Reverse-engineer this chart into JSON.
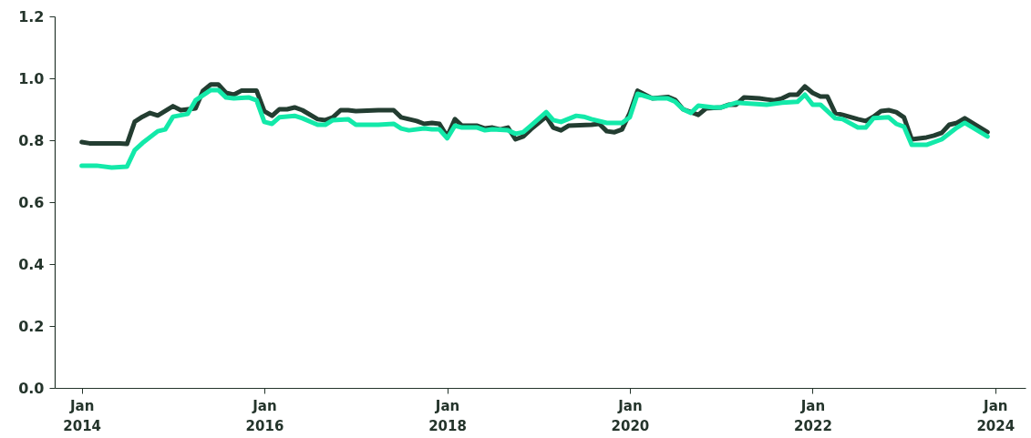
{
  "chart_data": {
    "type": "line",
    "xlim": [
      "2013-09-15",
      "2024-05-01"
    ],
    "ylim": [
      0,
      1.2
    ],
    "yticks": [
      {
        "value": 0,
        "label": "0.0"
      },
      {
        "value": 0.2,
        "label": "0.2"
      },
      {
        "value": 0.4,
        "label": "0.4"
      },
      {
        "value": 0.6,
        "label": "0.6"
      },
      {
        "value": 0.8,
        "label": "0.8"
      },
      {
        "value": 1,
        "label": "1.0"
      },
      {
        "value": 1.2,
        "label": "1.2"
      }
    ],
    "xticks": [
      {
        "value": "2014-01",
        "label": "Jan 2014"
      },
      {
        "value": "2016-01",
        "label": "Jan 2016"
      },
      {
        "value": "2018-01",
        "label": "Jan 2018"
      },
      {
        "value": "2020-01",
        "label": "Jan 2020"
      },
      {
        "value": "2022-01",
        "label": "Jan 2022"
      },
      {
        "value": "2024-01",
        "label": "Jan 2024"
      }
    ],
    "grid": false,
    "legend": false,
    "marker": "none",
    "line_style": "solid",
    "series": [
      {
        "color": "#233d31",
        "x": [
          "2014-01",
          "2014-02",
          "2014-06",
          "2014-07",
          "2014-08",
          "2014-09",
          "2014-10",
          "2014-11",
          "2015-01",
          "2015-02",
          "2015-04",
          "2015-05",
          "2015-06",
          "2015-07",
          "2015-08",
          "2015-09",
          "2015-10",
          "2015-12",
          "2016-01",
          "2016-02",
          "2016-03",
          "2016-04",
          "2016-05",
          "2016-06",
          "2016-08",
          "2016-09",
          "2016-10",
          "2016-11",
          "2016-12",
          "2017-01",
          "2017-04",
          "2017-06",
          "2017-07",
          "2017-08",
          "2017-09",
          "2017-10",
          "2017-11",
          "2017-12",
          "2018-01",
          "2018-02",
          "2018-03",
          "2018-05",
          "2018-06",
          "2018-07",
          "2018-08",
          "2018-09",
          "2018-10",
          "2018-11",
          "2018-12",
          "2019-02",
          "2019-03",
          "2019-04",
          "2019-05",
          "2019-08",
          "2019-09",
          "2019-10",
          "2019-11",
          "2019-12",
          "2020-01",
          "2020-02",
          "2020-04",
          "2020-06",
          "2020-07",
          "2020-08",
          "2020-09",
          "2020-10",
          "2020-11",
          "2021-01",
          "2021-02",
          "2021-03",
          "2021-04",
          "2021-06",
          "2021-07",
          "2021-08",
          "2021-09",
          "2021-10",
          "2021-11",
          "2021-12",
          "2022-01",
          "2022-02",
          "2022-03",
          "2022-04",
          "2022-05",
          "2022-07",
          "2022-08",
          "2022-09",
          "2022-10",
          "2022-11",
          "2022-12",
          "2023-01",
          "2023-02",
          "2023-04",
          "2023-05",
          "2023-06",
          "2023-07",
          "2023-08",
          "2023-09",
          "2023-12"
        ],
        "values": [
          0.794,
          0.79,
          0.79,
          0.788,
          0.86,
          0.876,
          0.888,
          0.88,
          0.91,
          0.897,
          0.903,
          0.96,
          0.98,
          0.98,
          0.953,
          0.947,
          0.96,
          0.96,
          0.894,
          0.879,
          0.9,
          0.9,
          0.906,
          0.897,
          0.868,
          0.865,
          0.874,
          0.897,
          0.897,
          0.894,
          0.897,
          0.897,
          0.874,
          0.868,
          0.862,
          0.853,
          0.856,
          0.853,
          0.812,
          0.868,
          0.847,
          0.847,
          0.838,
          0.841,
          0.835,
          0.841,
          0.803,
          0.812,
          0.835,
          0.876,
          0.841,
          0.832,
          0.847,
          0.85,
          0.853,
          0.829,
          0.826,
          0.835,
          0.888,
          0.96,
          0.935,
          0.94,
          0.93,
          0.9,
          0.891,
          0.882,
          0.903,
          0.906,
          0.915,
          0.915,
          0.938,
          0.935,
          0.932,
          0.929,
          0.935,
          0.947,
          0.947,
          0.974,
          0.953,
          0.941,
          0.941,
          0.888,
          0.882,
          0.868,
          0.862,
          0.876,
          0.894,
          0.897,
          0.891,
          0.874,
          0.803,
          0.809,
          0.815,
          0.824,
          0.85,
          0.856,
          0.871,
          0.826
        ]
      },
      {
        "color": "#13e9a9",
        "x": [
          "2014-01",
          "2014-03",
          "2014-05",
          "2014-07",
          "2014-08",
          "2014-09",
          "2014-11",
          "2014-12",
          "2015-01",
          "2015-03",
          "2015-04",
          "2015-06",
          "2015-07",
          "2015-08",
          "2015-09",
          "2015-11",
          "2015-12",
          "2016-01",
          "2016-02",
          "2016-03",
          "2016-05",
          "2016-06",
          "2016-08",
          "2016-09",
          "2016-10",
          "2016-12",
          "2017-01",
          "2017-04",
          "2017-06",
          "2017-07",
          "2017-08",
          "2017-10",
          "2017-11",
          "2017-12",
          "2018-01",
          "2018-02",
          "2018-03",
          "2018-05",
          "2018-06",
          "2018-07",
          "2018-09",
          "2018-10",
          "2018-11",
          "2018-12",
          "2019-02",
          "2019-03",
          "2019-04",
          "2019-06",
          "2019-07",
          "2019-08",
          "2019-10",
          "2019-12",
          "2020-01",
          "2020-02",
          "2020-04",
          "2020-06",
          "2020-07",
          "2020-08",
          "2020-09",
          "2020-10",
          "2020-12",
          "2021-01",
          "2021-03",
          "2021-07",
          "2021-09",
          "2021-11",
          "2021-12",
          "2022-01",
          "2022-02",
          "2022-04",
          "2022-05",
          "2022-07",
          "2022-08",
          "2022-09",
          "2022-11",
          "2022-12",
          "2023-01",
          "2023-02",
          "2023-04",
          "2023-06",
          "2023-08",
          "2023-09",
          "2023-12"
        ],
        "values": [
          0.718,
          0.718,
          0.712,
          0.715,
          0.768,
          0.791,
          0.829,
          0.835,
          0.876,
          0.885,
          0.929,
          0.962,
          0.962,
          0.938,
          0.935,
          0.938,
          0.929,
          0.859,
          0.853,
          0.874,
          0.879,
          0.871,
          0.85,
          0.85,
          0.865,
          0.868,
          0.85,
          0.85,
          0.853,
          0.838,
          0.832,
          0.838,
          0.835,
          0.835,
          0.806,
          0.847,
          0.841,
          0.841,
          0.832,
          0.835,
          0.832,
          0.821,
          0.826,
          0.847,
          0.891,
          0.865,
          0.859,
          0.879,
          0.876,
          0.868,
          0.856,
          0.856,
          0.874,
          0.95,
          0.935,
          0.935,
          0.924,
          0.9,
          0.888,
          0.912,
          0.906,
          0.906,
          0.921,
          0.915,
          0.921,
          0.924,
          0.947,
          0.915,
          0.915,
          0.871,
          0.868,
          0.841,
          0.841,
          0.871,
          0.874,
          0.853,
          0.844,
          0.785,
          0.785,
          0.803,
          0.841,
          0.856,
          0.812
        ]
      }
    ]
  }
}
